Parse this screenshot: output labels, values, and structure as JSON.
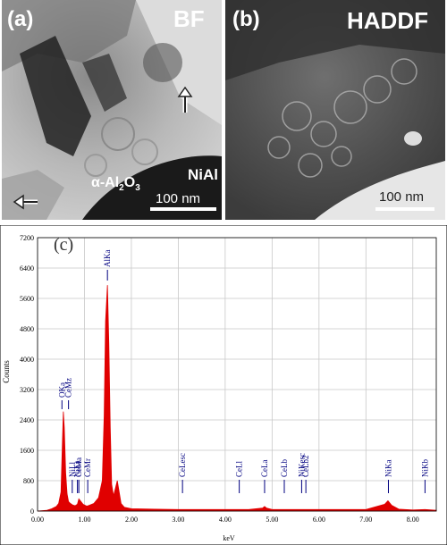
{
  "panel_a": {
    "label": "(a)",
    "mode": "BF",
    "phase_alumina": "α-Al",
    "phase_alumina_sub": "2",
    "phase_alumina_o": "O",
    "phase_alumina_sub2": "3",
    "phase_nial": "NiAl",
    "scale": "100 nm"
  },
  "panel_b": {
    "label": "(b)",
    "mode": "HADDF",
    "scale": "100 nm"
  },
  "chart_data": {
    "type": "line",
    "panel_label": "(c)",
    "title": "",
    "xlabel": "keV",
    "ylabel": "Counts",
    "xlim": [
      0.0,
      8.5
    ],
    "ylim": [
      0,
      7200
    ],
    "x_ticks": [
      "0.00",
      "1.00",
      "2.00",
      "3.00",
      "4.00",
      "5.00",
      "6.00",
      "7.00",
      "8.00"
    ],
    "y_ticks": [
      "0",
      "800",
      "1600",
      "2400",
      "3200",
      "4000",
      "4800",
      "5600",
      "6400",
      "7200"
    ],
    "grid": true,
    "series": [
      {
        "x": [
          0.0,
          0.2,
          0.3,
          0.4,
          0.45,
          0.5,
          0.53,
          0.55,
          0.57,
          0.6,
          0.63,
          0.66,
          0.7,
          0.75,
          0.8,
          0.85,
          0.88,
          0.92,
          0.97,
          1.0,
          1.05,
          1.1,
          1.2,
          1.3,
          1.38,
          1.42,
          1.45,
          1.49,
          1.52,
          1.55,
          1.58,
          1.62,
          1.66,
          1.7,
          1.74,
          1.78,
          1.85,
          2.0,
          2.5,
          3.0,
          3.5,
          4.0,
          4.5,
          4.8,
          4.84,
          4.88,
          5.0,
          5.5,
          6.0,
          6.5,
          7.0,
          7.4,
          7.47,
          7.55,
          7.7,
          8.0,
          8.26,
          8.5
        ],
        "y": [
          0,
          20,
          60,
          120,
          200,
          500,
          1800,
          2620,
          2200,
          1000,
          450,
          250,
          200,
          160,
          140,
          180,
          320,
          260,
          180,
          160,
          130,
          150,
          200,
          350,
          800,
          2500,
          5000,
          5950,
          4400,
          2200,
          700,
          400,
          600,
          800,
          500,
          200,
          100,
          60,
          50,
          40,
          40,
          40,
          40,
          80,
          120,
          80,
          40,
          40,
          40,
          40,
          40,
          180,
          270,
          150,
          50,
          30,
          40,
          20
        ]
      }
    ],
    "peak_labels": [
      {
        "text": "OKa",
        "x": 0.52
      },
      {
        "text": "CeMz",
        "x": 0.66
      },
      {
        "text": "NiLl",
        "x": 0.74
      },
      {
        "text": "NiLa",
        "x": 0.85
      },
      {
        "text": "CeMa",
        "x": 0.88
      },
      {
        "text": "CeMr",
        "x": 1.07
      },
      {
        "text": "AlKa",
        "x": 1.49
      },
      {
        "text": "CeLesc",
        "x": 3.09
      },
      {
        "text": "CeLl",
        "x": 4.3
      },
      {
        "text": "CeLa",
        "x": 4.84
      },
      {
        "text": "CeLb",
        "x": 5.26
      },
      {
        "text": "NiKesc",
        "x": 5.63
      },
      {
        "text": "CeLb2",
        "x": 5.72
      },
      {
        "text": "NiKa",
        "x": 7.48
      },
      {
        "text": "NiKb",
        "x": 8.26
      }
    ],
    "colors": {
      "fill": "#e00000",
      "grid": "#c8c8c8",
      "axis": "#000000",
      "label": "#000080"
    }
  }
}
